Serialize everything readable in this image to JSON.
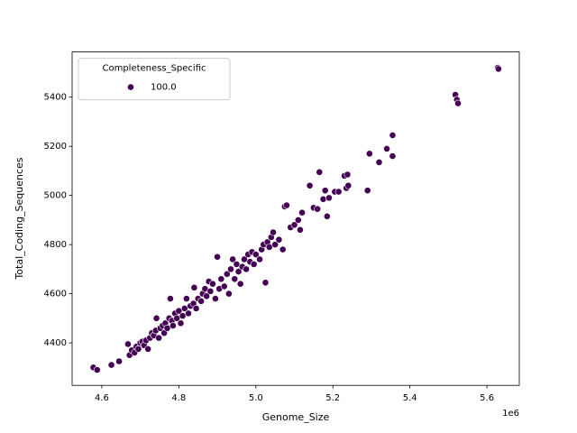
{
  "chart_data": {
    "type": "scatter",
    "x_label": "Genome_Size",
    "y_label": "Total_Coding_Sequences",
    "x_offset_label": "1e6",
    "legend_title": "Completeness_Specific",
    "legend_position": "upper left",
    "grid": false,
    "xlim": [
      4.523,
      5.684
    ],
    "ylim": [
      4227,
      5584
    ],
    "xticks": [
      4.6,
      4.8,
      {
        "value": 5,
        "label": "5.0"
      },
      5.2,
      5.4,
      5.6
    ],
    "yticks": [
      4400,
      4600,
      4800,
      5000,
      5200,
      5400
    ],
    "series": [
      {
        "name": "100.0",
        "color": "#440154",
        "x": [
          4.578,
          4.588,
          4.625,
          4.645,
          4.668,
          4.672,
          4.678,
          4.685,
          4.69,
          4.695,
          4.7,
          4.705,
          4.71,
          4.715,
          4.72,
          4.725,
          4.73,
          4.735,
          4.74,
          4.742,
          4.748,
          4.752,
          4.758,
          4.762,
          4.765,
          4.77,
          4.775,
          4.778,
          4.782,
          4.785,
          4.79,
          4.795,
          4.8,
          4.805,
          4.81,
          4.815,
          4.82,
          4.825,
          4.83,
          4.838,
          4.84,
          4.845,
          4.85,
          4.858,
          4.862,
          4.868,
          4.872,
          4.878,
          4.882,
          4.888,
          4.895,
          4.9,
          4.905,
          4.91,
          4.918,
          4.925,
          4.93,
          4.935,
          4.94,
          4.945,
          4.95,
          4.955,
          4.96,
          4.965,
          4.97,
          4.975,
          4.98,
          4.985,
          4.99,
          4.995,
          5.0,
          5.01,
          5.015,
          5.02,
          5.025,
          5.03,
          5.035,
          5.04,
          5.045,
          5.05,
          5.06,
          5.07,
          5.075,
          5.08,
          5.09,
          5.1,
          5.11,
          5.115,
          5.12,
          5.14,
          5.15,
          5.16,
          5.165,
          5.175,
          5.18,
          5.185,
          5.19,
          5.205,
          5.215,
          5.23,
          5.235,
          5.238,
          5.24,
          5.29,
          5.295,
          5.32,
          5.34,
          5.355,
          5.355,
          5.518,
          5.522,
          5.525,
          5.628,
          5.63
        ],
        "values": [
          4300,
          4290,
          4310,
          4325,
          4395,
          4350,
          4370,
          4360,
          4385,
          4375,
          4400,
          4405,
          4390,
          4410,
          4375,
          4420,
          4440,
          4430,
          4450,
          4500,
          4420,
          4460,
          4470,
          4440,
          4480,
          4460,
          4500,
          4580,
          4490,
          4470,
          4520,
          4500,
          4530,
          4480,
          4510,
          4540,
          4580,
          4520,
          4550,
          4560,
          4625,
          4540,
          4580,
          4570,
          4600,
          4620,
          4590,
          4650,
          4610,
          4640,
          4580,
          4750,
          4620,
          4660,
          4630,
          4680,
          4600,
          4700,
          4740,
          4660,
          4720,
          4690,
          4640,
          4710,
          4740,
          4700,
          4760,
          4730,
          4770,
          4720,
          4760,
          4740,
          4780,
          4800,
          4645,
          4810,
          4790,
          4830,
          4850,
          4800,
          4820,
          4780,
          4955,
          4960,
          4870,
          4880,
          4900,
          4860,
          4930,
          5040,
          4950,
          4945,
          5095,
          4985,
          5020,
          4915,
          4990,
          5015,
          5015,
          5080,
          5030,
          5085,
          5040,
          5020,
          5170,
          5135,
          5190,
          5245,
          5160,
          5410,
          5390,
          5375,
          5520,
          5515
        ]
      }
    ]
  }
}
